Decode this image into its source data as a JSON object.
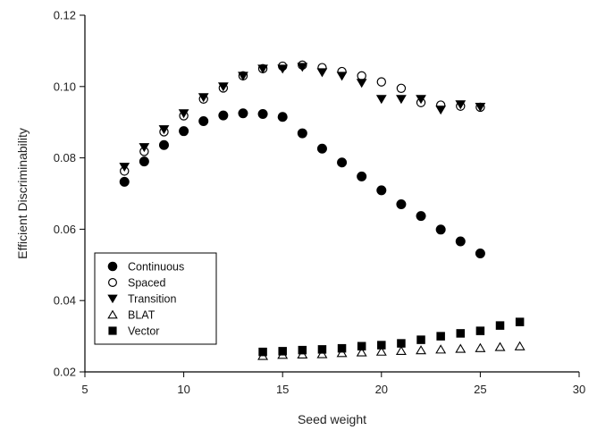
{
  "chart_data": {
    "type": "scatter",
    "xlabel": "Seed weight",
    "ylabel": "Efficient Discriminability",
    "xlim": [
      5,
      30
    ],
    "ylim": [
      0.02,
      0.12
    ],
    "xticks": [
      5,
      10,
      15,
      20,
      25,
      30
    ],
    "yticks": [
      0.02,
      0.04,
      0.06,
      0.08,
      0.1,
      0.12
    ],
    "ytick_labels": [
      "0.02",
      "0.04",
      "0.06",
      "0.08",
      "0.10",
      "0.12"
    ],
    "grid": false,
    "legend": "bottom-left",
    "series": [
      {
        "name": "Continuous",
        "marker": "filled-circle",
        "color": "#000000",
        "x": [
          7,
          8,
          9,
          10,
          11,
          12,
          13,
          14,
          15,
          16,
          17,
          18,
          19,
          20,
          21,
          22,
          23,
          24,
          25
        ],
        "y": [
          0.0733,
          0.079,
          0.0836,
          0.0875,
          0.0903,
          0.0919,
          0.0925,
          0.0923,
          0.0915,
          0.0869,
          0.0826,
          0.0787,
          0.0748,
          0.0709,
          0.067,
          0.0637,
          0.0599,
          0.0566,
          0.0532
        ]
      },
      {
        "name": "Spaced",
        "marker": "open-circle",
        "color": "#000000",
        "x": [
          7,
          8,
          9,
          10,
          11,
          12,
          13,
          14,
          15,
          16,
          17,
          18,
          19,
          20,
          21,
          22,
          23,
          24,
          25
        ],
        "y": [
          0.0763,
          0.0818,
          0.0873,
          0.0918,
          0.0965,
          0.0996,
          0.103,
          0.105,
          0.1057,
          0.106,
          0.1053,
          0.1042,
          0.103,
          0.1013,
          0.0995,
          0.0955,
          0.0948,
          0.0945,
          0.0942
        ]
      },
      {
        "name": "Transition",
        "marker": "filled-triangle-down",
        "color": "#000000",
        "x": [
          7,
          8,
          9,
          10,
          11,
          12,
          13,
          14,
          15,
          16,
          17,
          18,
          19,
          20,
          21,
          22,
          23,
          24,
          25
        ],
        "y": [
          0.0775,
          0.083,
          0.088,
          0.0925,
          0.097,
          0.1,
          0.103,
          0.105,
          0.105,
          0.1055,
          0.104,
          0.103,
          0.101,
          0.0965,
          0.0965,
          0.0965,
          0.0935,
          0.095,
          0.0943
        ]
      },
      {
        "name": "BLAT",
        "marker": "open-triangle-up",
        "color": "#000000",
        "x": [
          14,
          15,
          16,
          17,
          18,
          19,
          20,
          21,
          22,
          23,
          24,
          25,
          26,
          27
        ],
        "y": [
          0.0245,
          0.0248,
          0.0249,
          0.025,
          0.0253,
          0.0255,
          0.0257,
          0.0259,
          0.0261,
          0.0263,
          0.0265,
          0.0267,
          0.027,
          0.0272
        ]
      },
      {
        "name": "Vector",
        "marker": "filled-square",
        "color": "#000000",
        "x": [
          14,
          15,
          16,
          17,
          18,
          19,
          20,
          21,
          22,
          23,
          24,
          25,
          26,
          27
        ],
        "y": [
          0.0256,
          0.0258,
          0.0261,
          0.0263,
          0.0266,
          0.0272,
          0.0275,
          0.028,
          0.029,
          0.03,
          0.0308,
          0.0315,
          0.033,
          0.034
        ]
      }
    ]
  }
}
